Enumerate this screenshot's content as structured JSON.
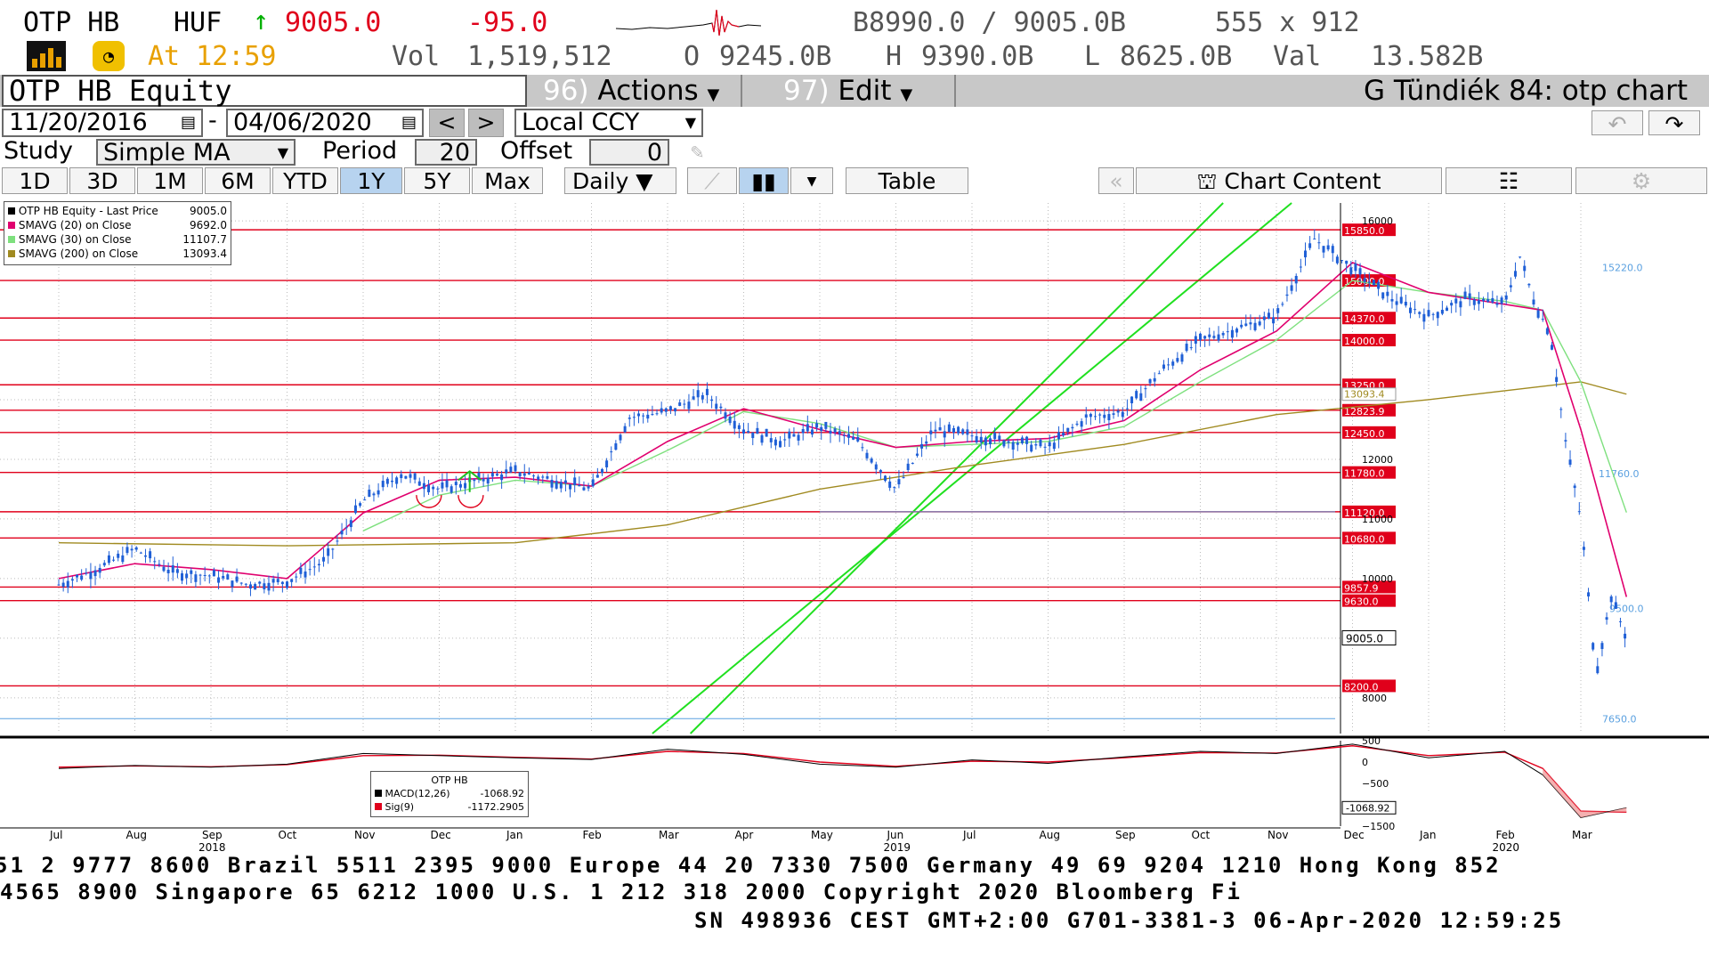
{
  "header": {
    "ticker": "OTP HB",
    "currency": "HUF",
    "last_price": "9005.0",
    "change": "-95.0",
    "bid_ask": "B8990.0 / 9005.0B",
    "size": "555 x 912",
    "time_label": "At 12:59",
    "volume_label": "Vol",
    "volume": "1,519,512",
    "open_label": "O",
    "open": "9245.0B",
    "high_label": "H",
    "high": "9390.0B",
    "low_label": "L",
    "low": "8625.0B",
    "value_label": "Val",
    "value": "13.582B"
  },
  "menu": {
    "security": "OTP HB Equity",
    "actions_num": "96)",
    "actions": "Actions",
    "edit_num": "97)",
    "edit": "Edit",
    "chart_title": "G Tündiék 84: otp chart"
  },
  "range": {
    "start_date": "11/20/2016",
    "end_date": "04/06/2020",
    "currency_mode": "Local CCY"
  },
  "study": {
    "label": "Study",
    "value": "Simple MA",
    "period_label": "Period",
    "period": "20",
    "offset_label": "Offset",
    "offset": "0"
  },
  "periods": [
    "1D",
    "3D",
    "1M",
    "6M",
    "YTD",
    "1Y",
    "5Y",
    "Max"
  ],
  "selected_period": "1Y",
  "frequency": "Daily",
  "table_label": "Table",
  "chart_content_label": "Chart Content",
  "colors": {
    "candle": "#1f5fd6",
    "sma20": "#e0006e",
    "sma30": "#7ee07e",
    "sma200": "#a08a20",
    "level": "#e0001b",
    "trend": "#20e020",
    "macd": "#000000",
    "signal": "#e0001b"
  },
  "chart_data": {
    "type": "line",
    "legend": {
      "placement": "top-left",
      "entries": [
        {
          "name": "OTP HB Equity - Last Price",
          "value": "9005.0"
        },
        {
          "name": "SMAVG (20)  on Close",
          "value": "9692.0"
        },
        {
          "name": "SMAVG (30)  on Close",
          "value": "11107.7"
        },
        {
          "name": "SMAVG (200)  on Close",
          "value": "13093.4"
        }
      ]
    },
    "x_labels": [
      "Jul",
      "Aug",
      "Sep",
      "Oct",
      "Nov",
      "Dec",
      "Jan",
      "Feb",
      "Mar",
      "Apr",
      "May",
      "Jun",
      "Jul",
      "Aug",
      "Sep",
      "Oct",
      "Nov",
      "Dec",
      "Jan",
      "Feb",
      "Mar"
    ],
    "year_labels": [
      {
        "label": "2018",
        "at": 2
      },
      {
        "label": "2019",
        "at": 11
      },
      {
        "label": "2020",
        "at": 19
      }
    ],
    "y_ticks": [
      16000,
      12000,
      11000,
      10000,
      8000
    ],
    "ylim": [
      7400,
      16300
    ],
    "price_series": {
      "name": "Last Price",
      "month_index": [
        0,
        0.5,
        1,
        1.5,
        2,
        2.5,
        3,
        3.5,
        4,
        4.5,
        5,
        5.5,
        6,
        6.5,
        7,
        7.5,
        8,
        8.5,
        9,
        9.5,
        10,
        10.5,
        11,
        11.5,
        12,
        12.5,
        13,
        13.5,
        14,
        14.5,
        15,
        15.5,
        16,
        16.5,
        17,
        17.5,
        18,
        18.5,
        19,
        19.2,
        19.4,
        19.6,
        19.8,
        20,
        20.2,
        20.4,
        20.6
      ],
      "values": [
        9900,
        10150,
        10500,
        10100,
        10050,
        9900,
        9950,
        10300,
        11300,
        11750,
        11500,
        11650,
        11800,
        11650,
        11500,
        12700,
        12800,
        13100,
        12500,
        12300,
        12550,
        12300,
        11500,
        12500,
        12400,
        12300,
        12200,
        12700,
        12800,
        13500,
        14000,
        14200,
        14400,
        15700,
        15200,
        14700,
        14400,
        14700,
        14600,
        15400,
        14600,
        14100,
        12300,
        11000,
        8400,
        9700,
        9005
      ]
    },
    "sma20": {
      "name": "SMAVG (20)",
      "month_index": [
        0,
        1,
        2,
        3,
        4,
        5,
        6,
        7,
        8,
        9,
        10,
        11,
        12,
        13,
        14,
        15,
        16,
        17,
        18,
        19,
        19.5,
        20,
        20.6
      ],
      "values": [
        10000,
        10250,
        10150,
        10000,
        11100,
        11650,
        11700,
        11550,
        12300,
        12850,
        12500,
        12200,
        12300,
        12350,
        12650,
        13500,
        14150,
        15300,
        14800,
        14600,
        14500,
        12500,
        9692
      ]
    },
    "sma30": {
      "name": "SMAVG (30)",
      "month_index": [
        4,
        5,
        6,
        7,
        8,
        9,
        10,
        11,
        12,
        13,
        14,
        15,
        16,
        17,
        18,
        19,
        19.5,
        20,
        20.6
      ],
      "values": [
        10800,
        11400,
        11650,
        11550,
        12150,
        12800,
        12600,
        12200,
        12250,
        12300,
        12550,
        13300,
        14000,
        15000,
        14800,
        14650,
        14500,
        13300,
        11108
      ]
    },
    "sma200": {
      "name": "SMAVG (200)",
      "month_index": [
        0,
        3,
        6,
        8,
        10,
        12,
        14,
        16,
        18,
        19,
        20,
        20.6
      ],
      "values": [
        10600,
        10550,
        10600,
        10900,
        11500,
        11900,
        12250,
        12750,
        13000,
        13150,
        13300,
        13093
      ]
    },
    "levels": [
      15850.0,
      15000.0,
      14370.0,
      14000.0,
      13250.0,
      12823.9,
      12450.0,
      11780.0,
      11120.0,
      10680.0,
      9857.9,
      9630.0,
      8200.0
    ],
    "level_labels": [
      "15850.0",
      "15000.0",
      "14370.0",
      "14000.0",
      "13250.0",
      "12823.9",
      "12450.0",
      "11780.0",
      "11120.0",
      "10680.0",
      "9857.9",
      "9630.0",
      "8200.0"
    ],
    "last_label": "9005.0",
    "sma200_label": "13093.4",
    "annotations": [
      "15220.0",
      "11760.0",
      "7650.0",
      "9500.0"
    ],
    "macd": {
      "legend_title": "OTP HB",
      "macd_label": "MACD(12,26)",
      "macd_value": "-1068.92",
      "sig_label": "Sig(9)",
      "sig_value": "-1172.2905",
      "last_label": "-1068.92",
      "y_ticks": [
        500,
        0,
        -500,
        -1000,
        -1500
      ],
      "month_index": [
        0,
        1,
        2,
        3,
        4,
        5,
        6,
        7,
        8,
        9,
        10,
        11,
        12,
        13,
        14,
        15,
        16,
        17,
        18,
        19,
        19.5,
        20,
        20.6
      ],
      "values": [
        -150,
        -80,
        -120,
        -50,
        200,
        150,
        100,
        60,
        300,
        180,
        -50,
        -120,
        50,
        -30,
        120,
        250,
        200,
        420,
        100,
        250,
        -300,
        -1300,
        -1069
      ],
      "signal": [
        -120,
        -90,
        -110,
        -60,
        150,
        160,
        110,
        70,
        250,
        200,
        0,
        -100,
        20,
        0,
        100,
        220,
        210,
        380,
        150,
        230,
        -150,
        -1150,
        -1172
      ]
    }
  },
  "footer": {
    "line1": "51 2 9777 8600 Brazil 5511 2395 9000 Europe 44 20 7330 7500 Germany 49 69 9204 1210 Hong Kong 852",
    "line2": " 4565 8900         Singapore 65 6212 1000         U.S. 1 212 318 2000          Copyright 2020 Bloomberg Fi",
    "line3": "SN 498936 CEST GMT+2:00 G701-3381-3 06-Apr-2020 12:59:25"
  }
}
